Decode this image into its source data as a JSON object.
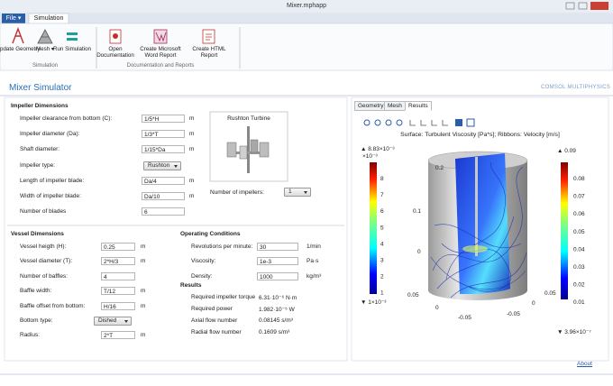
{
  "window": {
    "title": "Mixer.mphapp"
  },
  "ribbon": {
    "file_tab": "File ▾",
    "tab": "Simulation",
    "groups": [
      {
        "label": "Simulation",
        "buttons": [
          "Update Geometry",
          "Mesh ▾",
          "Run Simulation"
        ]
      },
      {
        "label": "Documentation and Reports",
        "buttons": [
          "Open Documentation",
          "Create Microsoft Word Report",
          "Create HTML Report"
        ]
      }
    ]
  },
  "app": {
    "title": "Mixer Simulator",
    "logo": "COMSOL MULTIPHYSICS"
  },
  "impeller": {
    "title": "Impeller Dimensions",
    "fields": [
      {
        "label": "Impeller clearance from bottom (C):",
        "value": "1/5*H",
        "unit": "m"
      },
      {
        "label": "Impeller diameter (Da):",
        "value": "1/3*T",
        "unit": "m"
      },
      {
        "label": "Shaft diameter:",
        "value": "1/15*Da",
        "unit": "m"
      },
      {
        "label": "Impeller type:",
        "value": "Rushton",
        "control": "select"
      },
      {
        "label": "Length of impeller blade:",
        "value": "Da/4",
        "unit": "m"
      },
      {
        "label": "Width of impeller blade:",
        "value": "Da/10",
        "unit": "m"
      },
      {
        "label": "Number of blades",
        "value": "6"
      }
    ],
    "image_caption": "Rushton Turbine",
    "impellers": {
      "label": "Number of impellers:",
      "value": "1"
    }
  },
  "vessel": {
    "title": "Vessel Dimensions",
    "fields": [
      {
        "label": "Vessel heigth (H):",
        "value": "0.25",
        "unit": "m"
      },
      {
        "label": "Vessel diameter (T):",
        "value": "2*H/3",
        "unit": "m"
      },
      {
        "label": "Number of baffles:",
        "value": "4"
      },
      {
        "label": "Baffle width:",
        "value": "T/12",
        "unit": "m"
      },
      {
        "label": "Baffle offset from bottom:",
        "value": "H/16",
        "unit": "m"
      },
      {
        "label": "Bottom type:",
        "value": "Dished",
        "control": "select"
      },
      {
        "label": "Radius:",
        "value": "2*T",
        "unit": "m"
      }
    ]
  },
  "operating": {
    "title": "Operating Conditions",
    "fields": [
      {
        "label": "Revolutions per minute:",
        "value": "30",
        "unit": "1/min"
      },
      {
        "label": "Viscosity:",
        "value": "1e-3",
        "unit": "Pa·s"
      },
      {
        "label": "Density:",
        "value": "1000",
        "unit": "kg/m³"
      }
    ]
  },
  "results": {
    "title": "Results",
    "rows": [
      {
        "label": "Required impeller torque",
        "value": "6.31·10⁻⁶ N·m"
      },
      {
        "label": "Required power",
        "value": "1.982·10⁻⁵ W"
      },
      {
        "label": "Axial flow number",
        "value": "0.08145 s/m³"
      },
      {
        "label": "Radial flow number",
        "value": "0.1609 s/m³"
      }
    ]
  },
  "plot": {
    "tabs": [
      "Geometry",
      "Mesh",
      "Results"
    ],
    "active_tab": 2,
    "title": "Surface: Turbulent Viscosity [Pa*s]; Ribbons: Velocity [m/s]",
    "left_bar": {
      "max": "▲ 8.83×10⁻³",
      "scale": "×10⁻³",
      "ticks": [
        "8",
        "7",
        "6",
        "5",
        "4",
        "3",
        "2",
        "1"
      ],
      "min": "▼ 1×10⁻³"
    },
    "right_bar": {
      "max": "▲ 0.09",
      "ticks": [
        "0.08",
        "0.07",
        "0.06",
        "0.05",
        "0.04",
        "0.03",
        "0.02",
        "0.01"
      ],
      "min": "▼ 3.96×10⁻⁷"
    },
    "axis_labels": [
      "0.2",
      "0.1",
      "0",
      "0.05",
      "0",
      "-0.05",
      "-0.05",
      "0",
      "0.05"
    ]
  },
  "footer": {
    "link": "About"
  }
}
